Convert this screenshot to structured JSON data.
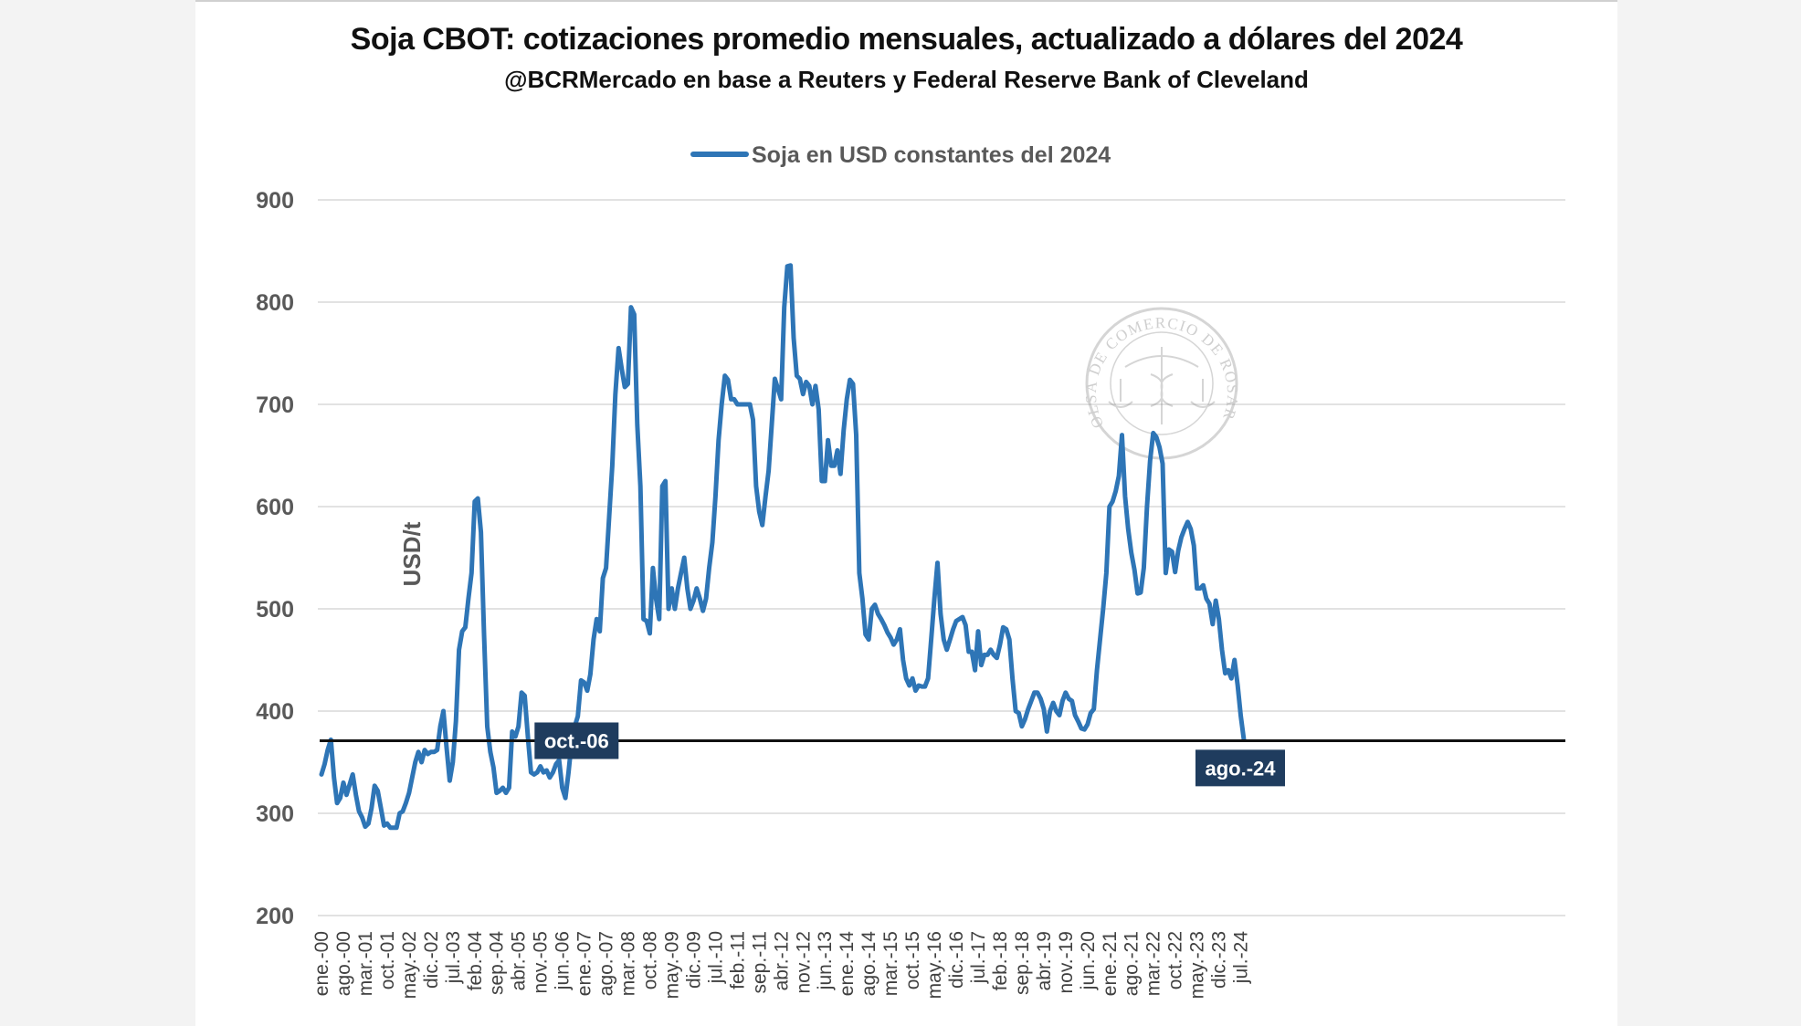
{
  "chart_data": {
    "type": "line",
    "title": "Soja CBOT: cotizaciones promedio mensuales, actualizado a dólares del 2024",
    "subtitle": "@BCRMercado en base a Reuters y Federal Reserve Bank of Cleveland",
    "ylabel": "USD/t",
    "xlabel": "",
    "ylim": [
      200,
      900
    ],
    "yticks": [
      200,
      300,
      400,
      500,
      600,
      700,
      800,
      900
    ],
    "grid": true,
    "legend_position": "top-center",
    "line_color": "#2e75b6",
    "x_start": "ene.-00",
    "x_end": "ago.-24",
    "x_tick_labels": [
      "ene.-00",
      "ago.-00",
      "mar.-01",
      "oct.-01",
      "may.-02",
      "dic.-02",
      "jul.-03",
      "feb.-04",
      "sep.-04",
      "abr.-05",
      "nov.-05",
      "jun.-06",
      "ene.-07",
      "ago.-07",
      "mar.-08",
      "oct.-08",
      "may.-09",
      "dic.-09",
      "jul.-10",
      "feb.-11",
      "sep.-11",
      "abr.-12",
      "nov.-12",
      "jun.-13",
      "ene.-14",
      "ago.-14",
      "mar.-15",
      "oct.-15",
      "may.-16",
      "dic.-16",
      "jul.-17",
      "feb.-18",
      "sep.-18",
      "abr.-19",
      "nov.-19",
      "jun.-20",
      "ene.-21",
      "ago.-21",
      "mar.-22",
      "oct.-22",
      "may.-23",
      "dic.-23",
      "jul.-24"
    ],
    "series": [
      {
        "name": "Soja en USD constantes del 2024",
        "values": [
          338,
          348,
          362,
          372,
          335,
          310,
          315,
          330,
          318,
          328,
          338,
          318,
          302,
          296,
          287,
          290,
          305,
          327,
          322,
          305,
          288,
          290,
          286,
          286,
          286,
          300,
          302,
          310,
          320,
          335,
          350,
          360,
          350,
          362,
          358,
          360,
          360,
          362,
          385,
          400,
          365,
          332,
          350,
          390,
          460,
          478,
          482,
          510,
          535,
          605,
          608,
          575,
          475,
          385,
          360,
          345,
          320,
          322,
          325,
          320,
          325,
          380,
          375,
          385,
          418,
          415,
          375,
          340,
          338,
          340,
          346,
          340,
          342,
          335,
          340,
          348,
          352,
          325,
          315,
          340,
          370,
          385,
          395,
          430,
          428,
          420,
          436,
          470,
          490,
          478,
          530,
          540,
          590,
          640,
          710,
          755,
          735,
          717,
          720,
          795,
          788,
          680,
          620,
          490,
          488,
          476,
          540,
          510,
          490,
          620,
          625,
          500,
          520,
          500,
          520,
          535,
          550,
          520,
          500,
          508,
          520,
          510,
          498,
          510,
          540,
          565,
          610,
          665,
          700,
          728,
          724,
          705,
          705,
          700,
          700,
          700,
          700,
          700,
          685,
          620,
          595,
          582,
          610,
          635,
          680,
          725,
          715,
          705,
          795,
          835,
          836,
          765,
          728,
          725,
          710,
          722,
          718,
          700,
          718,
          695,
          625,
          625,
          665,
          640,
          640,
          655,
          632,
          675,
          705,
          724,
          720,
          670,
          535,
          510,
          475,
          470,
          500,
          504,
          495,
          490,
          484,
          477,
          472,
          465,
          470,
          480,
          450,
          432,
          425,
          432,
          420,
          425,
          424,
          424,
          432,
          470,
          510,
          545,
          495,
          470,
          460,
          470,
          480,
          488,
          490,
          492,
          484,
          458,
          458,
          440,
          478,
          445,
          455,
          455,
          460,
          455,
          452,
          465,
          482,
          480,
          470,
          432,
          400,
          398,
          385,
          392,
          402,
          410,
          418,
          418,
          412,
          402,
          380,
          400,
          408,
          400,
          396,
          410,
          418,
          412,
          410,
          396,
          390,
          383,
          382,
          387,
          398,
          402,
          440,
          470,
          500,
          535,
          600,
          605,
          615,
          630,
          670,
          610,
          578,
          555,
          538,
          515,
          516,
          540,
          600,
          645,
          672,
          668,
          658,
          642,
          535,
          558,
          556,
          536,
          557,
          570,
          578,
          585,
          578,
          562,
          520,
          520,
          523,
          510,
          505,
          485,
          508,
          490,
          460,
          437,
          440,
          432,
          450,
          425,
          395,
          372
        ]
      }
    ],
    "annotations": [
      {
        "label": "oct.-06",
        "value": 371
      },
      {
        "label": "ago.-24",
        "value": 372
      }
    ],
    "watermark_text": "BOLSA DE COMERCIO DE ROSARIO"
  }
}
